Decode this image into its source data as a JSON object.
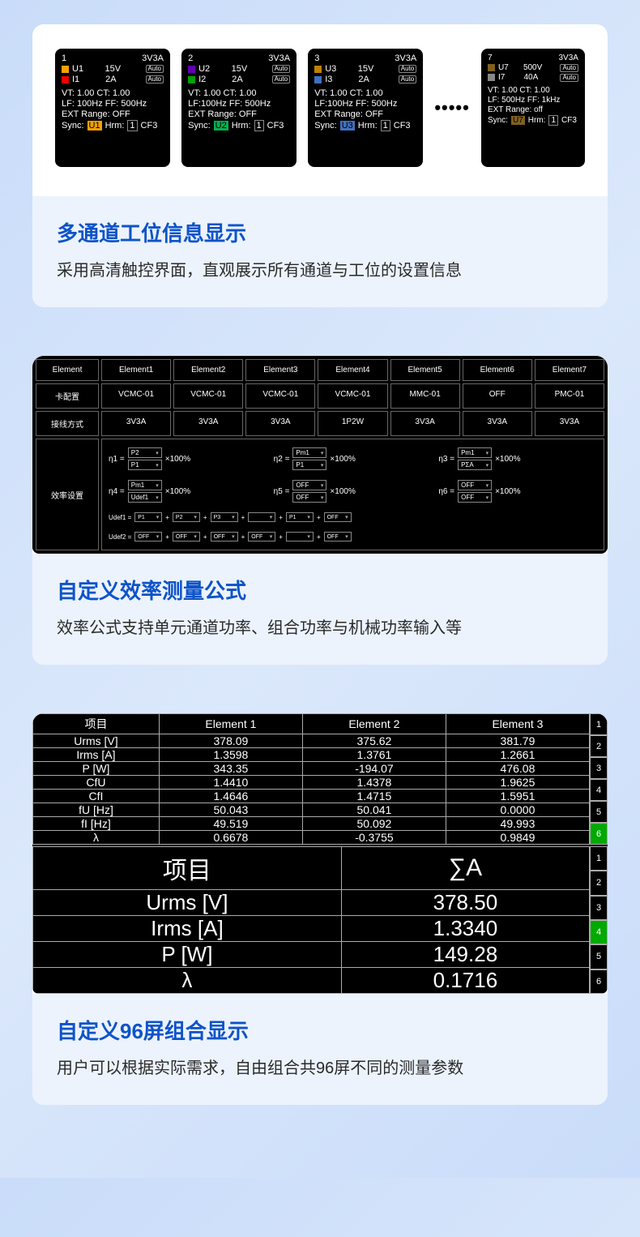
{
  "card1": {
    "title": "多通道工位信息显示",
    "desc": "采用高清触控界面，直观展示所有通道与工位的设置信息",
    "panels": [
      {
        "idx": "1",
        "mode": "3V3A",
        "u": "U1",
        "uv": "15V",
        "usq": "#f0a000",
        "i": "I1",
        "iv": "2A",
        "isq": "#f00000",
        "vt": "VT:  1.00 CT:  1.00",
        "lf": "LF:  100Hz FF:  500Hz",
        "ext": "EXT Range:  OFF",
        "sync": "Sync:",
        "sb": "U1",
        "sbc": "#f0a000",
        "rest": "Hrm: 1 CF3"
      },
      {
        "idx": "2",
        "mode": "3V3A",
        "u": "U2",
        "uv": "15V",
        "usq": "#6000b0",
        "i": "I2",
        "iv": "2A",
        "isq": "#00a000",
        "vt": "VT:  1.00 CT:  1.00",
        "lf": "LF:100Hz FF: 500Hz",
        "ext": "EXT Range:  OFF",
        "sync": "Sync:",
        "sb": "U2",
        "sbc": "#00b050",
        "rest": "Hrm: 1 CF3"
      },
      {
        "idx": "3",
        "mode": "3V3A",
        "u": "U3",
        "uv": "15V",
        "usq": "#c08000",
        "i": "I3",
        "iv": "2A",
        "isq": "#4070c0",
        "vt": "VT:  1.00 CT:  1.00",
        "lf": "LF:100Hz FF: 500Hz",
        "ext": "EXT Range:  OFF",
        "sync": "Sync:",
        "sb": "U3",
        "sbc": "#4070c0",
        "rest": "Hrm: 1 CF3"
      },
      {
        "idx": "7",
        "mode": "3V3A",
        "u": "U7",
        "uv": "500V",
        "usq": "#806020",
        "i": "I7",
        "iv": "40A",
        "isq": "#888",
        "vt": "VT:   1.00  CT:   1.00",
        "lf": "LF:  500Hz  FF:   1kHz",
        "ext": "EXT Range:  off",
        "sync": "Sync:",
        "sb": "U7",
        "sbc": "#806020",
        "rest": "Hrm: 1 CF3",
        "small": true
      }
    ]
  },
  "card2": {
    "title": "自定义效率测量公式",
    "desc": "效率公式支持单元通道功率、组合功率与机械功率输入等",
    "headers": [
      "Element",
      "Element1",
      "Element2",
      "Element3",
      "Element4",
      "Element5",
      "Element6",
      "Element7"
    ],
    "row_card_label": "卡配置",
    "row_card": [
      "VCMC-01",
      "VCMC-01",
      "VCMC-01",
      "VCMC-01",
      "MMC-01",
      "OFF",
      "PMC-01"
    ],
    "row_conn_label": "接线方式",
    "row_conn": [
      "3V3A",
      "3V3A",
      "3V3A",
      "1P2W",
      "3V3A",
      "3V3A",
      "3V3A"
    ],
    "eff_label": "效率设置",
    "etas1": [
      {
        "n": "η1 =",
        "num": "P2",
        "den": "P1"
      },
      {
        "n": "η2 =",
        "num": "Pm1",
        "den": "P1"
      },
      {
        "n": "η3 =",
        "num": "Pm1",
        "den": "PΣA"
      }
    ],
    "etas2": [
      {
        "n": "η4 =",
        "num": "Pm1",
        "den": "Udef1"
      },
      {
        "n": "η5 =",
        "num": "OFF",
        "den": "OFF"
      },
      {
        "n": "η6 =",
        "num": "OFF",
        "den": "OFF"
      }
    ],
    "x100": "×100%",
    "udef1": {
      "label": "Udef1 =",
      "cells": [
        "P1",
        "P2",
        "P3",
        "",
        "P1",
        "OFF"
      ]
    },
    "udef2": {
      "label": "Udef2 =",
      "cells": [
        "OFF",
        "OFF",
        "OFF",
        "OFF",
        "",
        "OFF"
      ]
    }
  },
  "card3": {
    "title": "自定义96屏组合显示",
    "desc": "用户可以根据实际需求，自由组合共96屏不同的测量参数",
    "top": {
      "headers": [
        "项目",
        "Element 1",
        "Element 2",
        "Element 3"
      ],
      "rows": [
        [
          "Urms [V]",
          "378.09",
          "375.62",
          "381.79"
        ],
        [
          "Irms [A]",
          "1.3598",
          "1.3761",
          "1.2661"
        ],
        [
          "P [W]",
          "343.35",
          "-194.07",
          "476.08"
        ],
        [
          "CfU",
          "1.4410",
          "1.4378",
          "1.9625"
        ],
        [
          "CfI",
          "1.4646",
          "1.4715",
          "1.5951"
        ],
        [
          "fU [Hz]",
          "50.043",
          "50.041",
          "0.0000"
        ],
        [
          "fI [Hz]",
          "49.519",
          "50.092",
          "49.993"
        ],
        [
          "λ",
          "0.6678",
          "-0.3755",
          "0.9849"
        ]
      ],
      "idx": [
        "1",
        "2",
        "3",
        "4",
        "5",
        "6"
      ],
      "active": 5
    },
    "bot": {
      "headers": [
        "项目",
        "∑A"
      ],
      "rows": [
        [
          "Urms [V]",
          "378.50"
        ],
        [
          "Irms [A]",
          "1.3340"
        ],
        [
          "P [W]",
          "149.28"
        ],
        [
          "λ",
          "0.1716"
        ]
      ],
      "idx": [
        "1",
        "2",
        "3",
        "4",
        "5",
        "6"
      ],
      "active": 3
    }
  }
}
